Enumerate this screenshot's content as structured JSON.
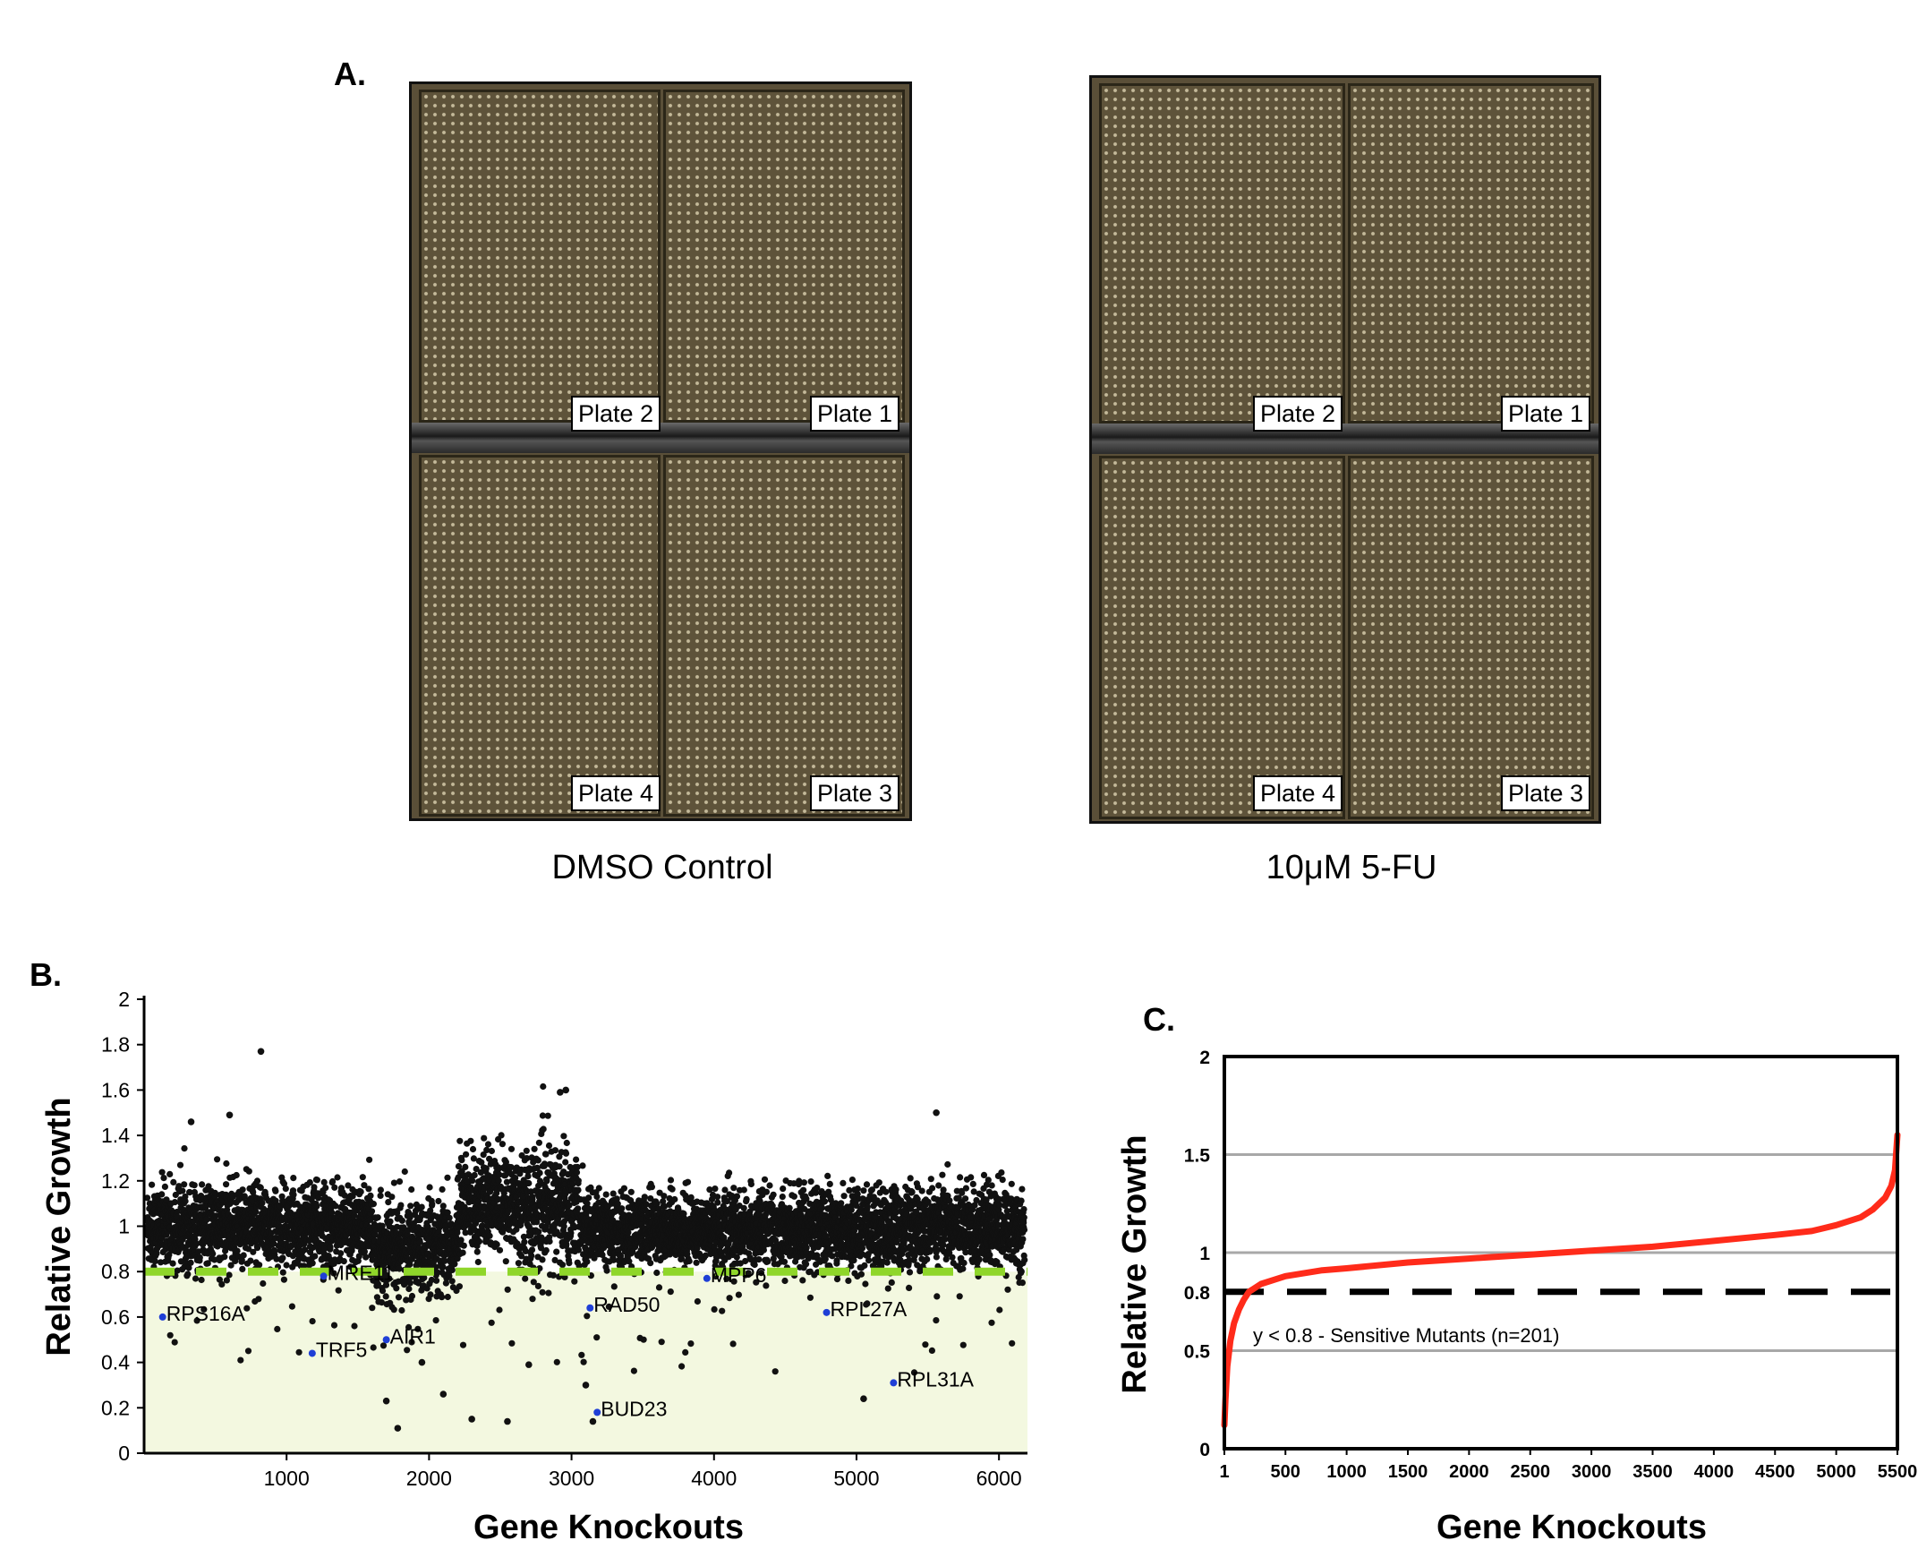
{
  "panel_a": {
    "letter": "A.",
    "left_tray": {
      "caption": "DMSO Control",
      "plates": {
        "top_left": "Plate 2",
        "top_right": "Plate 1",
        "bottom_left": "Plate 4",
        "bottom_right": "Plate 3"
      }
    },
    "right_tray": {
      "caption": "10μM 5-FU",
      "plates": {
        "top_left": "Plate 2",
        "top_right": "Plate 1",
        "bottom_left": "Plate 4",
        "bottom_right": "Plate 3"
      }
    }
  },
  "colors": {
    "scatter_point": "#111111",
    "highlight_point": "#1f3fd6",
    "threshold_line": "#8fd62a",
    "sensitive_region": "#f3f8e0",
    "curve": "#ff2b1a",
    "tray_background": "#5a4f38"
  },
  "chart_data": [
    {
      "id": "B",
      "type": "scatter",
      "panel_letter": "B.",
      "xlabel": "Gene Knockouts",
      "ylabel": "Relative Growth",
      "xlim": [
        0,
        6200
      ],
      "ylim": [
        0,
        2
      ],
      "xticks": [
        1000,
        2000,
        3000,
        4000,
        5000,
        6000
      ],
      "yticks": [
        0,
        0.2,
        0.4,
        0.6,
        0.8,
        1,
        1.2,
        1.4,
        1.6,
        1.8,
        2
      ],
      "ytick_labels": [
        "0",
        "0.2",
        "0.4",
        "0.6",
        "0.8",
        "1",
        "1.2",
        "1.4",
        "1.6",
        "1.8",
        "2"
      ],
      "threshold": 0.8,
      "n_points": 6100,
      "segments": [
        {
          "from": 0,
          "to": 1600,
          "mean": 1.0,
          "sd": 0.09
        },
        {
          "from": 1600,
          "to": 2200,
          "mean": 0.9,
          "sd": 0.1
        },
        {
          "from": 2200,
          "to": 2700,
          "mean": 1.1,
          "sd": 0.11
        },
        {
          "from": 2700,
          "to": 3050,
          "mean": 1.08,
          "sd": 0.14
        },
        {
          "from": 3050,
          "to": 4600,
          "mean": 0.98,
          "sd": 0.08
        },
        {
          "from": 4600,
          "to": 6200,
          "mean": 0.99,
          "sd": 0.09
        }
      ],
      "notable_points": [
        {
          "x": 820,
          "y": 1.77
        },
        {
          "x": 2960,
          "y": 1.6
        },
        {
          "x": 2920,
          "y": 1.59
        },
        {
          "x": 5560,
          "y": 1.5
        },
        {
          "x": 600,
          "y": 1.49
        },
        {
          "x": 330,
          "y": 1.46
        },
        {
          "x": 2300,
          "y": 0.15
        },
        {
          "x": 2550,
          "y": 0.14
        },
        {
          "x": 1780,
          "y": 0.11
        },
        {
          "x": 1700,
          "y": 0.23
        },
        {
          "x": 3100,
          "y": 0.3
        },
        {
          "x": 3150,
          "y": 0.14
        },
        {
          "x": 5050,
          "y": 0.24
        },
        {
          "x": 2100,
          "y": 0.26
        },
        {
          "x": 1950,
          "y": 0.4
        },
        {
          "x": 2700,
          "y": 0.39
        }
      ],
      "highlighted": [
        {
          "gene": "RPS16A",
          "x": 130,
          "y": 0.6
        },
        {
          "gene": "MRE11",
          "x": 1260,
          "y": 0.78
        },
        {
          "gene": "TRF5",
          "x": 1180,
          "y": 0.44
        },
        {
          "gene": "AIR1",
          "x": 1700,
          "y": 0.5
        },
        {
          "gene": "RAD50",
          "x": 3130,
          "y": 0.64
        },
        {
          "gene": "BUD23",
          "x": 3180,
          "y": 0.18
        },
        {
          "gene": "MPP6",
          "x": 3950,
          "y": 0.77
        },
        {
          "gene": "RPL27A",
          "x": 4790,
          "y": 0.62
        },
        {
          "gene": "RPL31A",
          "x": 5260,
          "y": 0.31
        }
      ]
    },
    {
      "id": "C",
      "type": "line",
      "panel_letter": "C.",
      "xlabel": "Gene Knockouts",
      "ylabel": "Relative Growth",
      "xlim": [
        1,
        5500
      ],
      "ylim": [
        0,
        2
      ],
      "xticks": [
        1,
        500,
        1000,
        1500,
        2000,
        2500,
        3000,
        3500,
        4000,
        4500,
        5000,
        5500
      ],
      "yticks": [
        0,
        0.5,
        0.8,
        1,
        1.5,
        2
      ],
      "ytick_labels": [
        "0",
        "0.5",
        "0.8",
        "1",
        "1.5",
        "2"
      ],
      "gridlines_y": [
        0.5,
        1,
        1.5
      ],
      "threshold": 0.8,
      "annotation": "y < 0.8 - Sensitive Mutants (n=201)",
      "series": [
        {
          "name": "sorted relative growth",
          "x": [
            1,
            10,
            25,
            50,
            80,
            120,
            160,
            201,
            300,
            500,
            800,
            1000,
            1500,
            2000,
            2500,
            3000,
            3500,
            4000,
            4500,
            4800,
            5000,
            5200,
            5300,
            5400,
            5450,
            5480,
            5500
          ],
          "y": [
            0.12,
            0.25,
            0.42,
            0.55,
            0.64,
            0.71,
            0.76,
            0.8,
            0.84,
            0.88,
            0.91,
            0.92,
            0.95,
            0.97,
            0.99,
            1.01,
            1.03,
            1.06,
            1.09,
            1.11,
            1.14,
            1.18,
            1.22,
            1.28,
            1.34,
            1.42,
            1.6
          ]
        }
      ]
    }
  ]
}
